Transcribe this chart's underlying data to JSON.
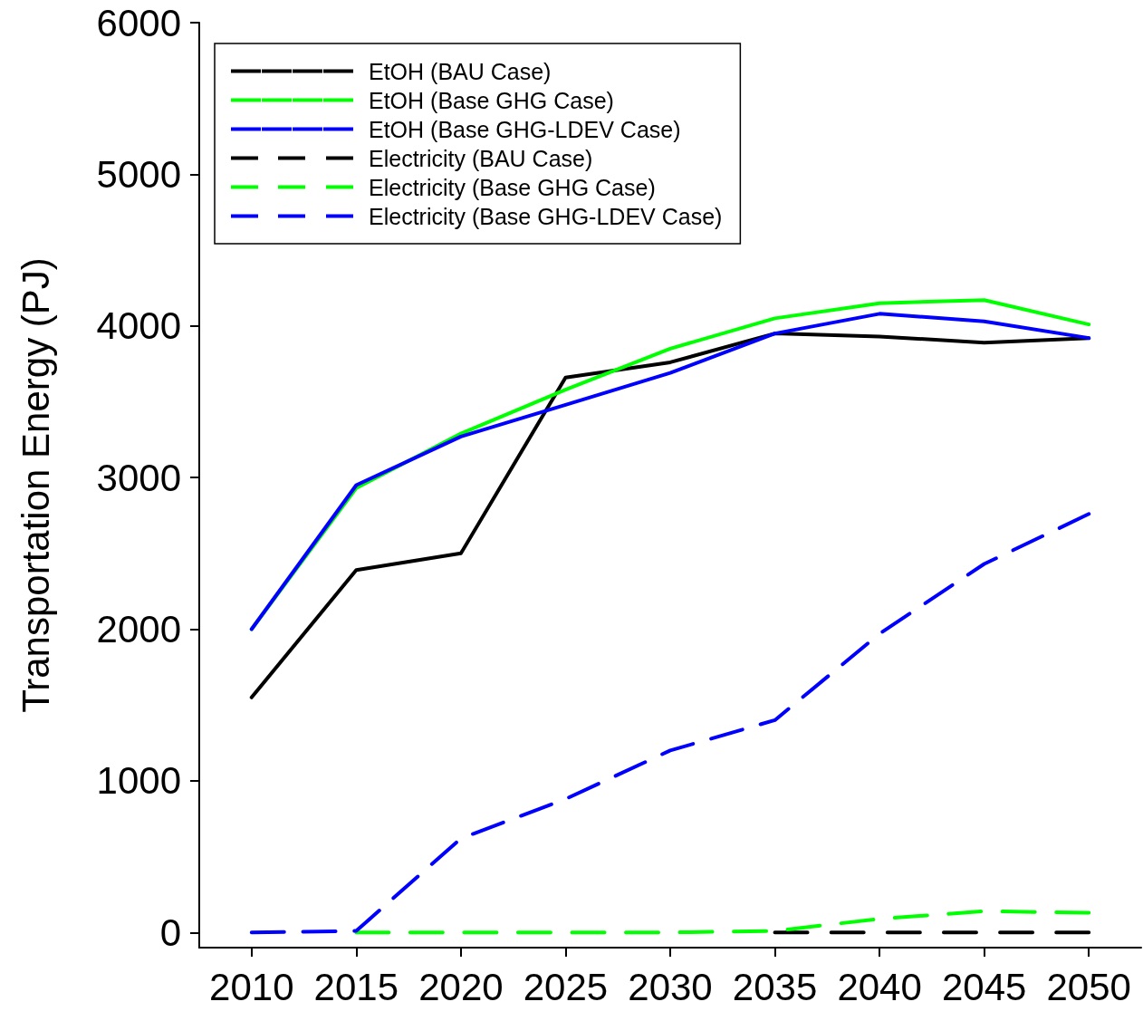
{
  "chart_data": {
    "type": "line",
    "ylabel": "Transportation Energy (PJ)",
    "x": [
      2010,
      2015,
      2020,
      2025,
      2030,
      2035,
      2040,
      2045,
      2050
    ],
    "xlim": [
      2007.5,
      2052.5
    ],
    "xticks": [
      2010,
      2015,
      2020,
      2025,
      2030,
      2035,
      2040,
      2045,
      2050
    ],
    "ylim": [
      -100,
      6000
    ],
    "yticks": [
      0,
      1000,
      2000,
      3000,
      4000,
      5000,
      6000
    ],
    "grid": false,
    "legend": "top left",
    "marker": "none",
    "series": [
      {
        "name": "EtOH (BAU Case)",
        "color": "#000000",
        "line_style": "solid",
        "values": [
          1550,
          2390,
          2500,
          3660,
          3760,
          3950,
          3930,
          3890,
          3920
        ]
      },
      {
        "name": "EtOH (Base GHG Case)",
        "color": "#00ff00",
        "line_style": "solid",
        "values": [
          2000,
          2930,
          3290,
          3580,
          3850,
          4050,
          4150,
          4170,
          4010
        ]
      },
      {
        "name": "EtOH (Base GHG-LDEV Case)",
        "color": "#0000ff",
        "line_style": "solid",
        "values": [
          2000,
          2950,
          3270,
          3480,
          3690,
          3950,
          4080,
          4030,
          3920
        ]
      },
      {
        "name": "Electricity (BAU Case)",
        "color": "#000000",
        "line_style": "dashed",
        "values": [
          null,
          null,
          null,
          null,
          null,
          0,
          0,
          0,
          0
        ]
      },
      {
        "name": "Electricity (Base GHG Case)",
        "color": "#00ff00",
        "line_style": "dashed",
        "values": [
          null,
          0,
          0,
          0,
          0,
          10,
          90,
          140,
          130
        ]
      },
      {
        "name": "Electricity (Base GHG-LDEV Case)",
        "color": "#0000ff",
        "line_style": "dashed",
        "values": [
          0,
          10,
          620,
          880,
          1200,
          1400,
          1970,
          2430,
          2760
        ]
      }
    ]
  }
}
